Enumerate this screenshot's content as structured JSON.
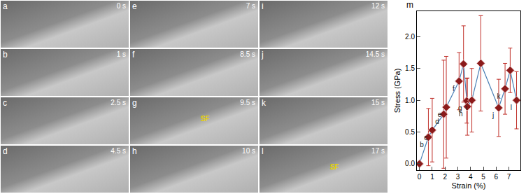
{
  "panels": [
    {
      "label": "a",
      "time": "0 s"
    },
    {
      "label": "e",
      "time": "7 s"
    },
    {
      "label": "i",
      "time": "12 s"
    },
    {
      "label": "b",
      "time": "1 s"
    },
    {
      "label": "f",
      "time": "8.5 s"
    },
    {
      "label": "j",
      "time": "14.5 s"
    },
    {
      "label": "c",
      "time": "2.5 s"
    },
    {
      "label": "g",
      "time": "9.5 s",
      "note": "SF"
    },
    {
      "label": "k",
      "time": "15 s"
    },
    {
      "label": "d",
      "time": "4.5 s"
    },
    {
      "label": "h",
      "time": "10 s"
    },
    {
      "label": "l",
      "time": "17 s",
      "note": "SF"
    }
  ],
  "chart_data": {
    "type": "line",
    "title": "m",
    "x_label": "Strain (%)",
    "y_label": "Stress (GPa)",
    "x": [
      0,
      0.7,
      1.0,
      1.9,
      2.1,
      3.1,
      3.45,
      3.7,
      3.75,
      4.1,
      4.8,
      6.2,
      6.7,
      7.1,
      7.6
    ],
    "values": [
      0,
      0.42,
      0.53,
      0.78,
      0.89,
      1.3,
      1.57,
      0.99,
      0.9,
      1.0,
      1.58,
      0.88,
      1.18,
      1.47,
      1.0
    ],
    "errors": [
      0,
      0.45,
      0.5,
      0.85,
      0.8,
      0.45,
      0.6,
      0.35,
      0.45,
      0.5,
      0.75,
      0.45,
      0.4,
      0.35,
      0.45
    ],
    "point_labels": [
      "a",
      "b",
      "c",
      "d",
      "e",
      "f",
      null,
      "g",
      "h",
      "i",
      null,
      "j",
      "k",
      null,
      "l"
    ],
    "color": "#4a7fb5",
    "marker": "diamond",
    "error_color": "#c0302a",
    "marker_color": "#8b1a1a",
    "xlim": [
      -0.2,
      7.9
    ],
    "xticks": [
      0,
      1,
      2,
      3,
      4,
      5,
      6,
      7
    ],
    "ylim": [
      -0.1,
      2.4
    ],
    "yticks": [
      {
        "value": 0,
        "label": "0.0"
      },
      0.5,
      {
        "value": 1,
        "label": "1.0"
      },
      1.5,
      {
        "value": 2,
        "label": "2.0"
      }
    ],
    "grid": false
  }
}
